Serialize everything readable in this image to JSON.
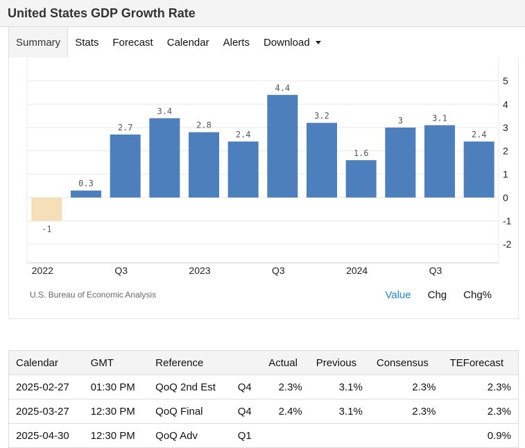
{
  "header": {
    "title": "United States GDP Growth Rate"
  },
  "tabs": [
    {
      "label": "Summary",
      "active": true
    },
    {
      "label": "Stats"
    },
    {
      "label": "Forecast"
    },
    {
      "label": "Calendar"
    },
    {
      "label": "Alerts"
    },
    {
      "label": "Download"
    }
  ],
  "chart_data": {
    "type": "bar",
    "categories": [
      "2022 Q1",
      "2022 Q2",
      "2022 Q3",
      "2022 Q4",
      "2023 Q1",
      "2023 Q2",
      "2023 Q3",
      "2023 Q4",
      "2024 Q1",
      "2024 Q2",
      "2024 Q3",
      "2024 Q4"
    ],
    "values": [
      -1,
      0.3,
      2.7,
      3.4,
      2.8,
      2.4,
      4.4,
      3.2,
      1.6,
      3,
      3.1,
      2.4
    ],
    "value_labels": [
      "-1",
      "0.3",
      "2.7",
      "3.4",
      "2.8",
      "2.4",
      "4.4",
      "3.2",
      "1.6",
      "3",
      "3.1",
      "2.4"
    ],
    "x_tick_labels": [
      "2022",
      "Q3",
      "2023",
      "Q3",
      "2024",
      "Q3"
    ],
    "y_ticks": [
      5,
      4,
      3,
      2,
      1,
      0,
      -1,
      -2
    ],
    "ylim": [
      -2.8,
      6.0
    ],
    "grid": true,
    "colors": {
      "positive": "#4d7fbc",
      "negative": "#f5dfb8"
    }
  },
  "chart_footer": {
    "source": "U.S. Bureau of Economic Analysis",
    "toggles": [
      {
        "label": "Value",
        "active": true
      },
      {
        "label": "Chg"
      },
      {
        "label": "Chg%"
      }
    ]
  },
  "calendar": {
    "headers": [
      "Calendar",
      "GMT",
      "Reference",
      "",
      "Actual",
      "Previous",
      "Consensus",
      "TEForecast"
    ],
    "rows": [
      [
        "2025-02-27",
        "01:30 PM",
        "QoQ 2nd Est",
        "Q4",
        "2.3%",
        "3.1%",
        "2.3%",
        "2.3%"
      ],
      [
        "2025-03-27",
        "12:30 PM",
        "QoQ Final",
        "Q4",
        "2.4%",
        "3.1%",
        "2.3%",
        "2.3%"
      ],
      [
        "2025-04-30",
        "12:30 PM",
        "QoQ Adv",
        "Q1",
        "",
        "",
        "",
        "0.9%"
      ]
    ]
  }
}
